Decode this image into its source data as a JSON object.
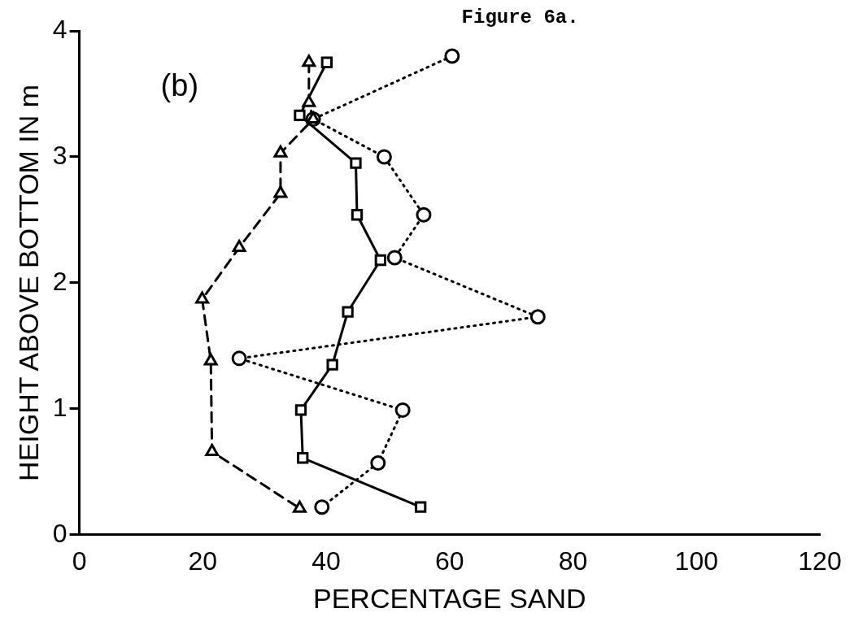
{
  "chart_data": {
    "type": "line",
    "xlabel": "PERCENTAGE SAND",
    "ylabel": "HEIGHT ABOVE BOTTOM IN m",
    "annotations": [
      "(b)",
      "Figure 6a."
    ],
    "xlim": [
      0,
      120
    ],
    "xticks": [
      0,
      20,
      40,
      60,
      80,
      100,
      120
    ],
    "ylim": [
      0,
      4
    ],
    "yticks": [
      0,
      1,
      2,
      3,
      4
    ],
    "grid": false,
    "legend": false,
    "series": [
      {
        "color": "#000000",
        "marker": "triangle",
        "line_style": "dashed",
        "x": [
          37.2,
          37.2,
          37.9,
          32.6,
          32.6,
          25.9,
          19.9,
          21.3,
          21.5,
          35.7
        ],
        "values": [
          3.75,
          3.43,
          3.3,
          3.03,
          2.71,
          2.28,
          1.87,
          1.38,
          0.66,
          0.21
        ]
      },
      {
        "color": "#000000",
        "marker": "square",
        "line_style": "solid",
        "x": [
          40.1,
          35.7,
          44.8,
          45,
          48.8,
          43.5,
          41,
          35.9,
          36.2,
          55.3
        ],
        "values": [
          3.75,
          3.33,
          2.95,
          2.54,
          2.18,
          1.77,
          1.35,
          0.99,
          0.61,
          0.22
        ]
      },
      {
        "color": "#000000",
        "marker": "circle",
        "line_style": "dotted",
        "x": [
          60.4,
          37.9,
          49.4,
          55.8,
          51.1,
          74.3,
          25.9,
          52.4,
          48.4,
          39.3
        ],
        "values": [
          3.8,
          3.3,
          3.0,
          2.54,
          2.2,
          1.73,
          1.4,
          0.99,
          0.57,
          0.22
        ]
      }
    ]
  }
}
